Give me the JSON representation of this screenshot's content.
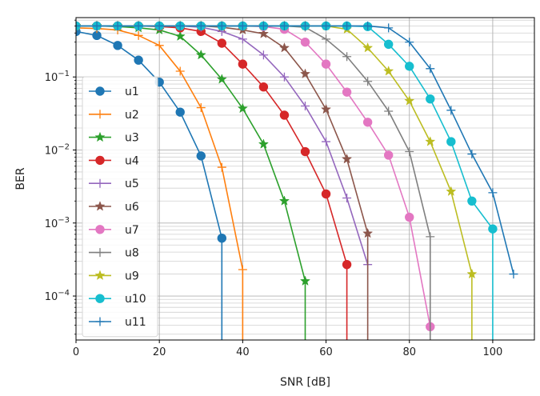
{
  "chart_data": {
    "type": "line",
    "title": "",
    "xlabel": "SNR [dB]",
    "ylabel": "BER",
    "xlim": [
      0,
      110
    ],
    "ylim": [
      2.5e-05,
      0.65
    ],
    "yscale": "log",
    "grid": "major and minor",
    "legend_position": "left",
    "x_ticks": [
      0,
      20,
      40,
      60,
      80,
      100
    ],
    "x_tick_labels": [
      "0",
      "20",
      "40",
      "60",
      "80",
      "100"
    ],
    "y_ticks": [
      0.0001,
      0.001,
      0.01,
      0.1
    ],
    "y_tick_labels": [
      {
        "base": "10",
        "exp": "−4"
      },
      {
        "base": "10",
        "exp": "−3"
      },
      {
        "base": "10",
        "exp": "−2"
      },
      {
        "base": "10",
        "exp": "−1"
      }
    ],
    "series": [
      {
        "name": "u1",
        "color": "#1f77b4",
        "marker": "circle",
        "x": [
          0,
          5,
          10,
          15,
          20,
          25,
          30,
          35,
          35
        ],
        "y": [
          0.42,
          0.37,
          0.27,
          0.17,
          0.085,
          0.033,
          0.0083,
          0.00062,
          1e-06
        ]
      },
      {
        "name": "u2",
        "color": "#ff7f0e",
        "marker": "plus",
        "x": [
          0,
          5,
          10,
          15,
          20,
          25,
          30,
          35,
          40,
          40
        ],
        "y": [
          0.47,
          0.46,
          0.44,
          0.37,
          0.27,
          0.12,
          0.038,
          0.0058,
          0.00023,
          1e-06
        ]
      },
      {
        "name": "u3",
        "color": "#2ca02c",
        "marker": "star",
        "x": [
          0,
          5,
          10,
          15,
          20,
          25,
          30,
          35,
          40,
          45,
          50,
          55,
          55
        ],
        "y": [
          0.5,
          0.5,
          0.49,
          0.47,
          0.44,
          0.36,
          0.2,
          0.093,
          0.037,
          0.012,
          0.002,
          0.00016,
          1e-06
        ]
      },
      {
        "name": "u4",
        "color": "#d62728",
        "marker": "circle",
        "x": [
          0,
          5,
          10,
          15,
          20,
          25,
          30,
          35,
          40,
          45,
          50,
          55,
          60,
          65,
          65
        ],
        "y": [
          0.5,
          0.5,
          0.5,
          0.5,
          0.49,
          0.47,
          0.42,
          0.29,
          0.15,
          0.073,
          0.03,
          0.0095,
          0.0025,
          0.00027,
          1e-06
        ]
      },
      {
        "name": "u5",
        "color": "#9467bd",
        "marker": "plus",
        "x": [
          0,
          5,
          10,
          15,
          20,
          25,
          30,
          35,
          40,
          45,
          50,
          55,
          60,
          65,
          70
        ],
        "y": [
          0.5,
          0.5,
          0.5,
          0.5,
          0.5,
          0.5,
          0.48,
          0.42,
          0.33,
          0.2,
          0.1,
          0.04,
          0.013,
          0.0022,
          0.00027
        ]
      },
      {
        "name": "u6",
        "color": "#8c564b",
        "marker": "star",
        "x": [
          0,
          5,
          10,
          15,
          20,
          25,
          30,
          35,
          40,
          45,
          50,
          55,
          60,
          65,
          70,
          70
        ],
        "y": [
          0.5,
          0.5,
          0.5,
          0.5,
          0.5,
          0.5,
          0.5,
          0.48,
          0.44,
          0.39,
          0.25,
          0.11,
          0.036,
          0.0075,
          0.00072,
          1e-06
        ]
      },
      {
        "name": "u7",
        "color": "#e377c2",
        "marker": "circle",
        "x": [
          0,
          5,
          10,
          15,
          20,
          25,
          30,
          35,
          40,
          45,
          50,
          55,
          60,
          65,
          70,
          75,
          80,
          85
        ],
        "y": [
          0.5,
          0.5,
          0.5,
          0.5,
          0.5,
          0.5,
          0.5,
          0.5,
          0.5,
          0.49,
          0.45,
          0.3,
          0.15,
          0.062,
          0.024,
          0.0085,
          0.0012,
          3.8e-05
        ]
      },
      {
        "name": "u8",
        "color": "#7f7f7f",
        "marker": "plus",
        "x": [
          0,
          5,
          10,
          15,
          20,
          25,
          30,
          35,
          40,
          45,
          50,
          55,
          60,
          65,
          70,
          75,
          80,
          85,
          85
        ],
        "y": [
          0.5,
          0.5,
          0.5,
          0.5,
          0.5,
          0.5,
          0.5,
          0.5,
          0.5,
          0.5,
          0.5,
          0.48,
          0.33,
          0.19,
          0.087,
          0.034,
          0.0095,
          0.00065,
          1e-06
        ]
      },
      {
        "name": "u9",
        "color": "#bcbd22",
        "marker": "star",
        "x": [
          0,
          5,
          10,
          15,
          20,
          25,
          30,
          35,
          40,
          45,
          50,
          55,
          60,
          65,
          70,
          75,
          80,
          85,
          90,
          95,
          95
        ],
        "y": [
          0.5,
          0.5,
          0.5,
          0.5,
          0.5,
          0.5,
          0.5,
          0.5,
          0.5,
          0.5,
          0.5,
          0.5,
          0.5,
          0.45,
          0.25,
          0.12,
          0.047,
          0.013,
          0.0027,
          0.0002,
          1e-06
        ]
      },
      {
        "name": "u10",
        "color": "#17becf",
        "marker": "circle",
        "x": [
          0,
          5,
          10,
          15,
          20,
          25,
          30,
          35,
          40,
          45,
          50,
          55,
          60,
          65,
          70,
          75,
          80,
          85,
          90,
          95,
          100,
          100
        ],
        "y": [
          0.5,
          0.5,
          0.5,
          0.5,
          0.5,
          0.5,
          0.5,
          0.5,
          0.5,
          0.5,
          0.5,
          0.5,
          0.5,
          0.5,
          0.49,
          0.28,
          0.14,
          0.05,
          0.013,
          0.002,
          0.00083,
          1e-06
        ]
      },
      {
        "name": "u11",
        "color": "#1f77b4",
        "marker": "plus",
        "x": [
          0,
          5,
          10,
          15,
          20,
          25,
          30,
          35,
          40,
          45,
          50,
          55,
          60,
          65,
          70,
          75,
          80,
          85,
          90,
          95,
          100,
          105
        ],
        "y": [
          0.5,
          0.5,
          0.5,
          0.5,
          0.5,
          0.5,
          0.5,
          0.5,
          0.5,
          0.5,
          0.5,
          0.5,
          0.5,
          0.5,
          0.5,
          0.47,
          0.3,
          0.13,
          0.035,
          0.0088,
          0.0026,
          0.0002
        ]
      }
    ]
  }
}
